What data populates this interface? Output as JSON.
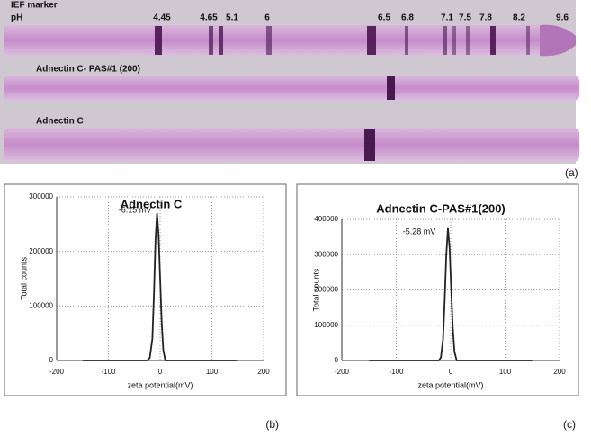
{
  "gel": {
    "title": "IEF marker",
    "axis_label": "pH",
    "markers": [
      "4.45",
      "4.65",
      "5.1",
      "6",
      "6.5",
      "6.8",
      "7.1",
      "7.5",
      "7.8",
      "8.2",
      "9.6"
    ],
    "lanes": [
      "Adnectin C- PAS#1 (200)",
      "Adnectin C"
    ],
    "panel_label": "(a)"
  },
  "chart_data": [
    {
      "type": "line",
      "title": "Adnectin C",
      "annotation": "-6.15 mV",
      "x_label": "zeta potential(mV)",
      "y_label": "Total counts",
      "panel_label": "(b)",
      "x": [
        -150,
        -25,
        -20,
        -15,
        -12,
        -9,
        -6,
        -3,
        0,
        3,
        6,
        10,
        150
      ],
      "values": [
        0,
        0,
        5000,
        40000,
        120000,
        220000,
        270000,
        230000,
        150000,
        70000,
        20000,
        0,
        0
      ],
      "color": "#222222",
      "xlim": [
        -200,
        200
      ],
      "xticks": [
        -200,
        -100,
        0,
        100,
        200
      ],
      "ylim": [
        0,
        300000
      ],
      "yticks": [
        0,
        100000,
        200000,
        300000
      ],
      "grid": true
    },
    {
      "type": "line",
      "title": "Adnectin C-PAS#1(200)",
      "annotation": "-5.28 mV",
      "x_label": "zeta potential(mV)",
      "y_label": "Total counts",
      "panel_label": "(c)",
      "x": [
        -150,
        -22,
        -18,
        -14,
        -11,
        -8,
        -5,
        -2,
        1,
        4,
        7,
        11,
        150
      ],
      "values": [
        0,
        0,
        8000,
        60000,
        170000,
        300000,
        375000,
        320000,
        200000,
        90000,
        25000,
        0,
        0
      ],
      "color": "#222222",
      "xlim": [
        -200,
        200
      ],
      "xticks": [
        -200,
        -100,
        0,
        100,
        200
      ],
      "ylim": [
        0,
        400000
      ],
      "yticks": [
        0,
        100000,
        200000,
        300000,
        400000
      ],
      "grid": true
    }
  ]
}
